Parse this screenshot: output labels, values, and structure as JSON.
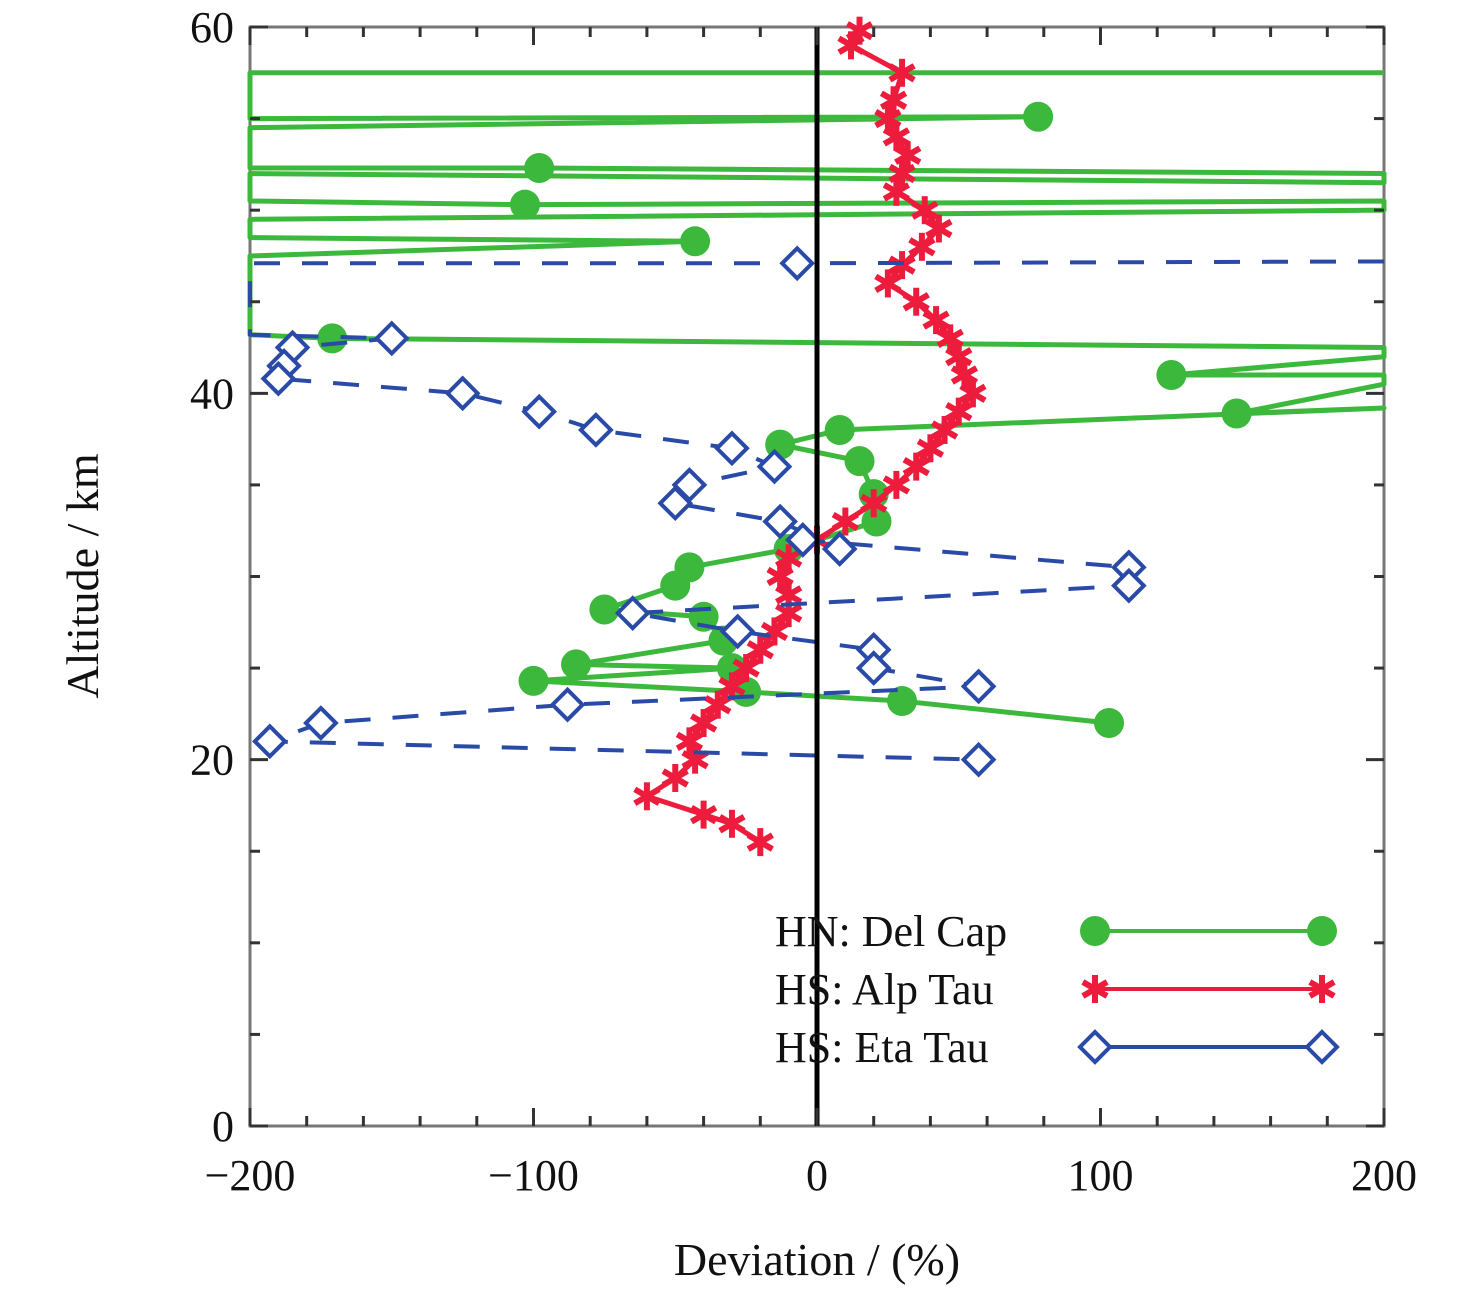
{
  "chart_data": {
    "type": "line",
    "xlabel": "Deviation / (%)",
    "ylabel": "Altitude / km",
    "xlim": [
      -200,
      200
    ],
    "ylim": [
      0,
      60
    ],
    "xticks": [
      "−200",
      "−100",
      "0",
      "100",
      "200"
    ],
    "yticks": [
      "0",
      "20",
      "40",
      "60"
    ],
    "grid": false,
    "legend_position": "bottom-right",
    "zero_line": true,
    "series": [
      {
        "name": "HN: Del Cap",
        "color": "#3cb83c",
        "marker": "filled-circle",
        "dash": "solid",
        "points": [
          [
            200,
            57.5
          ],
          [
            -200,
            57.5
          ],
          [
            -200,
            55.5
          ],
          [
            -200,
            55
          ],
          [
            78,
            55.1
          ],
          [
            -200,
            54.5
          ],
          [
            -200,
            52.3
          ],
          [
            -98,
            52.3
          ],
          [
            200,
            52
          ],
          [
            200,
            51.5
          ],
          [
            -200,
            52
          ],
          [
            -200,
            50.5
          ],
          [
            -103,
            50.3
          ],
          [
            200,
            50.5
          ],
          [
            200,
            50
          ],
          [
            -200,
            49.5
          ],
          [
            -200,
            48.5
          ],
          [
            -43,
            48.3
          ],
          [
            -200,
            47.5
          ],
          [
            -200,
            43.2
          ],
          [
            -171,
            43
          ],
          [
            200,
            42.5
          ],
          [
            200,
            42
          ],
          [
            125,
            41
          ],
          [
            200,
            41
          ],
          [
            200,
            40.5
          ],
          [
            148,
            38.9
          ],
          [
            200,
            39.2
          ],
          [
            8,
            38
          ],
          [
            -13,
            37.2
          ],
          [
            15,
            36.3
          ],
          [
            20,
            34.5
          ],
          [
            21,
            33
          ],
          [
            -10,
            31.5
          ],
          [
            -45,
            30.5
          ],
          [
            -50,
            29.5
          ],
          [
            -75,
            28.2
          ],
          [
            -40,
            27.8
          ],
          [
            -33,
            26.5
          ],
          [
            -85,
            25.2
          ],
          [
            -30,
            25
          ],
          [
            -100,
            24.3
          ],
          [
            -25,
            23.7
          ],
          [
            30,
            23.2
          ],
          [
            103,
            22
          ]
        ]
      },
      {
        "name": "HS: Alp Tau",
        "color": "#ee1c3c",
        "marker": "star",
        "dash": "solid",
        "points": [
          [
            15,
            59.8
          ],
          [
            12,
            59
          ],
          [
            30,
            57.5
          ],
          [
            27,
            56
          ],
          [
            25,
            55
          ],
          [
            28,
            54
          ],
          [
            32,
            53
          ],
          [
            30,
            52
          ],
          [
            28,
            51
          ],
          [
            38,
            50
          ],
          [
            43,
            49
          ],
          [
            37,
            48
          ],
          [
            30,
            47
          ],
          [
            25,
            46
          ],
          [
            35,
            45
          ],
          [
            42,
            44
          ],
          [
            47,
            43
          ],
          [
            50,
            42
          ],
          [
            52,
            41
          ],
          [
            55,
            40
          ],
          [
            50,
            39
          ],
          [
            45,
            38
          ],
          [
            40,
            37
          ],
          [
            35,
            36
          ],
          [
            28,
            35
          ],
          [
            20,
            34
          ],
          [
            10,
            33
          ],
          [
            0,
            32
          ],
          [
            -10,
            31
          ],
          [
            -13,
            30
          ],
          [
            -10,
            29
          ],
          [
            -10,
            28
          ],
          [
            -15,
            27
          ],
          [
            -20,
            26
          ],
          [
            -25,
            25
          ],
          [
            -30,
            24
          ],
          [
            -35,
            23
          ],
          [
            -40,
            22
          ],
          [
            -45,
            21
          ],
          [
            -43,
            20
          ],
          [
            -50,
            19
          ],
          [
            -60,
            18
          ],
          [
            -40,
            17
          ],
          [
            -30,
            16.5
          ],
          [
            -20,
            15.5
          ]
        ]
      },
      {
        "name": "HS: Eta Tau",
        "color": "#2a4aa8",
        "marker": "open-diamond",
        "dash": "dashed",
        "points": [
          [
            200,
            47.2
          ],
          [
            -7,
            47.1
          ],
          [
            -200,
            47.1
          ],
          [
            -200,
            43.2
          ],
          [
            -150,
            43
          ],
          [
            -185,
            42.5
          ],
          [
            -188,
            41.5
          ],
          [
            -190,
            40.8
          ],
          [
            -125,
            40
          ],
          [
            -98,
            39
          ],
          [
            -78,
            38
          ],
          [
            -30,
            37
          ],
          [
            -15,
            36
          ],
          [
            -45,
            35
          ],
          [
            -50,
            34
          ],
          [
            -13,
            33
          ],
          [
            8,
            31.5
          ],
          [
            -5,
            32
          ],
          [
            110,
            30.5
          ],
          [
            110,
            29.5
          ],
          [
            -65,
            28
          ],
          [
            -28,
            27
          ],
          [
            20,
            26
          ],
          [
            20,
            25
          ],
          [
            57,
            24
          ],
          [
            -88,
            23
          ],
          [
            -175,
            22
          ],
          [
            -193,
            21
          ],
          [
            57,
            20
          ]
        ]
      }
    ]
  }
}
